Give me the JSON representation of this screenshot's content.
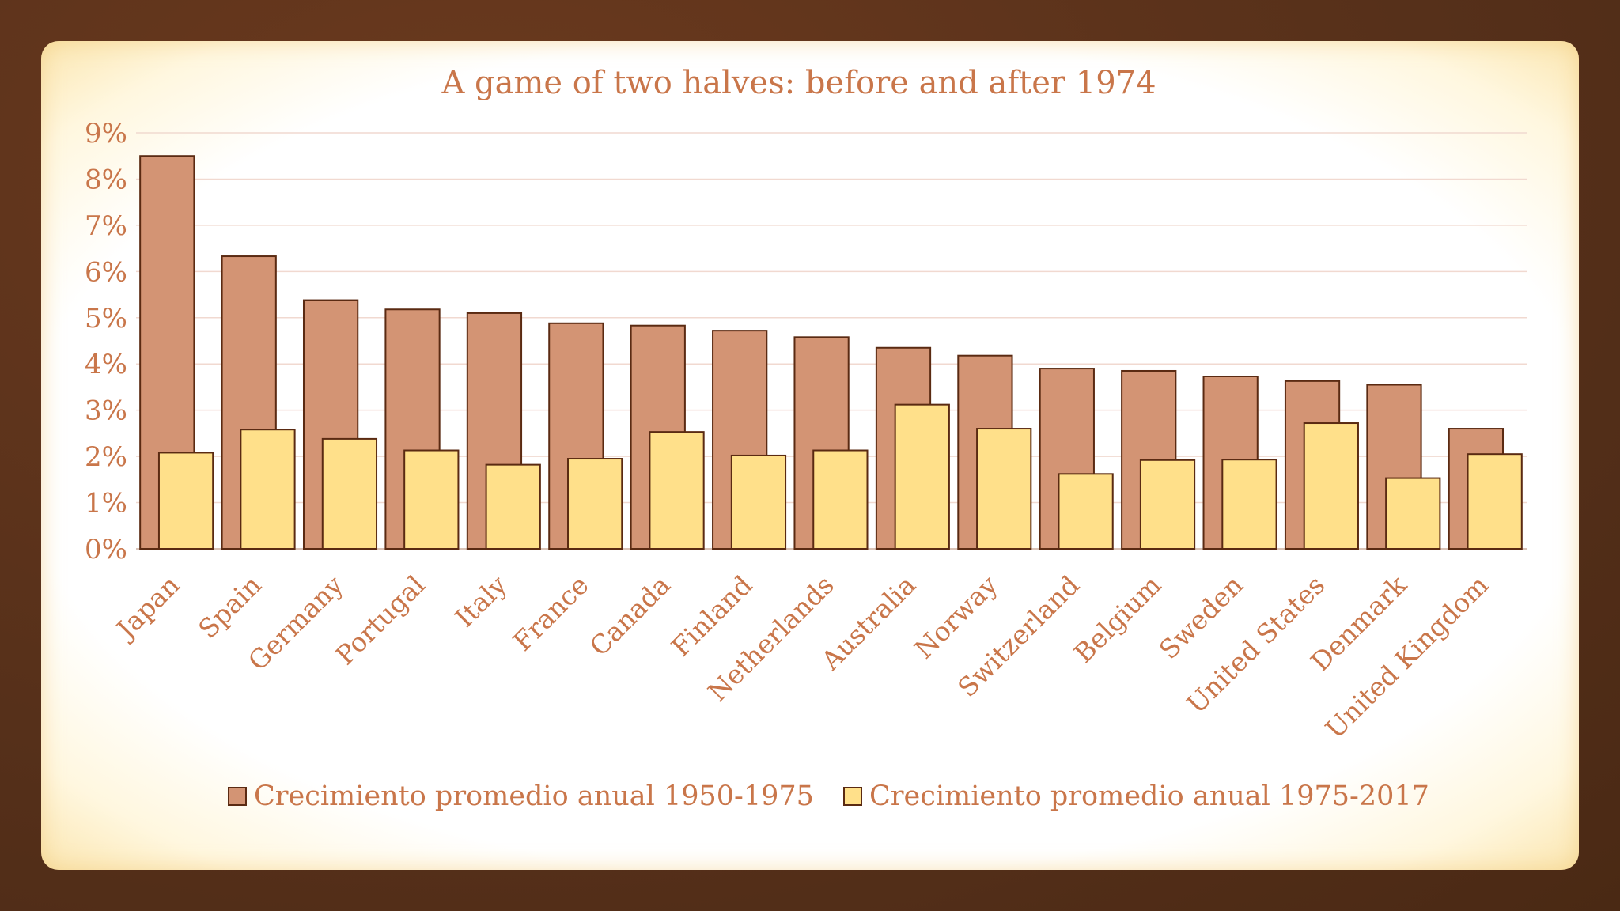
{
  "chart_data": {
    "type": "bar",
    "title": "A game of two halves: before and after 1974",
    "xlabel": "",
    "ylabel": "",
    "ylim": [
      0,
      9
    ],
    "yticks": [
      "0%",
      "1%",
      "2%",
      "3%",
      "4%",
      "5%",
      "6%",
      "7%",
      "8%",
      "9%"
    ],
    "grid": true,
    "legend_position": "bottom",
    "categories": [
      "Japan",
      "Spain",
      "Germany",
      "Portugal",
      "Italy",
      "France",
      "Canada",
      "Finland",
      "Netherlands",
      "Australia",
      "Norway",
      "Switzerland",
      "Belgium",
      "Sweden",
      "United States",
      "Denmark",
      "United Kingdom"
    ],
    "series": [
      {
        "name": "Crecimiento promedio anual 1950-1975",
        "color": "#d39474",
        "values": [
          8.5,
          6.33,
          5.38,
          5.18,
          5.1,
          4.88,
          4.83,
          4.72,
          4.58,
          4.35,
          4.18,
          3.9,
          3.85,
          3.73,
          3.63,
          3.55,
          2.6
        ]
      },
      {
        "name": "Crecimiento promedio anual 1975-2017",
        "color": "#ffe08a",
        "values": [
          2.08,
          2.58,
          2.38,
          2.13,
          1.82,
          1.95,
          2.53,
          2.02,
          2.13,
          3.12,
          2.6,
          1.62,
          1.92,
          1.93,
          2.72,
          1.53,
          2.05
        ]
      }
    ]
  }
}
